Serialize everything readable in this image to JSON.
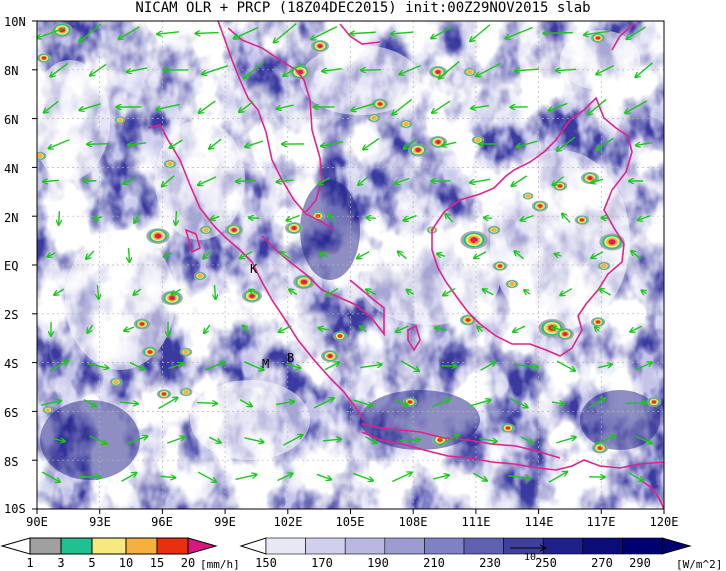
{
  "title": "NICAM OLR + PRCP (18Z04DEC2015) init:00Z29NOV2015 slab",
  "y_axis_labels": [
    "10N",
    "8N",
    "6N",
    "4N",
    "2N",
    "EQ",
    "2S",
    "4S",
    "6S",
    "8S",
    "10S"
  ],
  "x_axis_labels": [
    "90E",
    "93E",
    "96E",
    "99E",
    "102E",
    "105E",
    "108E",
    "111E",
    "114E",
    "117E",
    "120E"
  ],
  "map_labels": [
    "K",
    "M",
    "B"
  ],
  "prcp_legend": {
    "ticks": [
      "1",
      "3",
      "5",
      "10",
      "15",
      "20"
    ],
    "unit": "[mm/h]",
    "colors": [
      "#a0a0a0",
      "#20c090",
      "#f8e880",
      "#f5b040",
      "#e83010",
      "#d81880"
    ]
  },
  "olr_legend": {
    "ticks": [
      "150",
      "170",
      "190",
      "210",
      "230",
      "250",
      "270",
      "290"
    ],
    "unit": "[W/m^2]",
    "colors": [
      "#ffffff",
      "#e8e8f4",
      "#d0d0ec",
      "#b8b8e0",
      "#9c9cd0",
      "#8080c4",
      "#6060b0",
      "#40409c",
      "#20208a",
      "#0c0c78",
      "#000070"
    ]
  },
  "vector_ref_label": "10",
  "colors": {
    "vector": "#19c819",
    "coastline": "#e0238c",
    "grid": "#b4b4b4"
  }
}
